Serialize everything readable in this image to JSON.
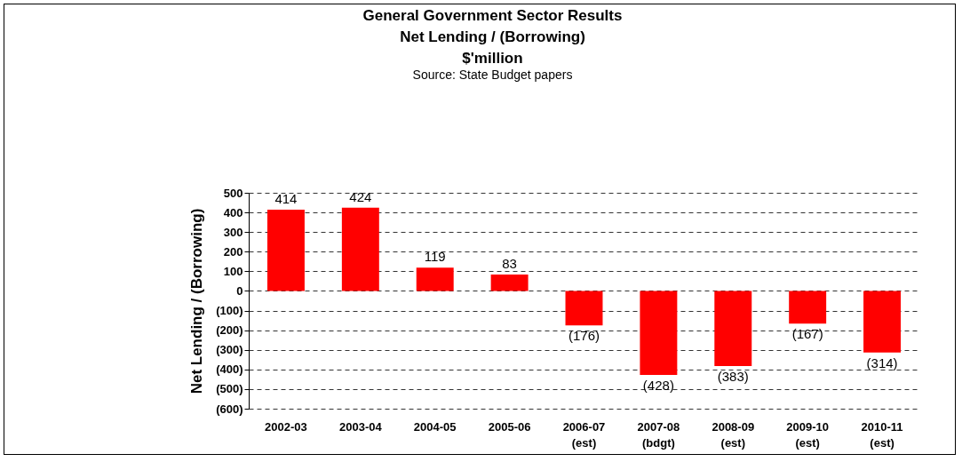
{
  "chart_data": {
    "type": "bar",
    "title": "General Government Sector Results\nNet Lending / (Borrowing)\n$'million",
    "subtitle": "Source: State Budget papers",
    "ylabel": "Net Lending / (Borrowing)",
    "categories": [
      "2002-03",
      "2003-04",
      "2004-05",
      "2005-06",
      "2006-07\n(est)",
      "2007-08\n(bdgt)",
      "2008-09\n(est)",
      "2009-10\n(est)",
      "2010-11\n(est)"
    ],
    "values": [
      414,
      424,
      119,
      83,
      -176,
      -428,
      -383,
      -167,
      -314
    ],
    "value_labels": [
      "414",
      "424",
      "119",
      "83",
      "(176)",
      "(428)",
      "(383)",
      "(167)",
      "(314)"
    ],
    "color": "#ff0000",
    "ylim": [
      -600,
      500
    ],
    "yticks": [
      {
        "value": -600,
        "label": "(600)"
      },
      {
        "value": -500,
        "label": "(500)"
      },
      {
        "value": -400,
        "label": "(400)"
      },
      {
        "value": -300,
        "label": "(300)"
      },
      {
        "value": -200,
        "label": "(200)"
      },
      {
        "value": -100,
        "label": "(100)"
      },
      0,
      100,
      200,
      300,
      400,
      500
    ],
    "grid": "y"
  }
}
